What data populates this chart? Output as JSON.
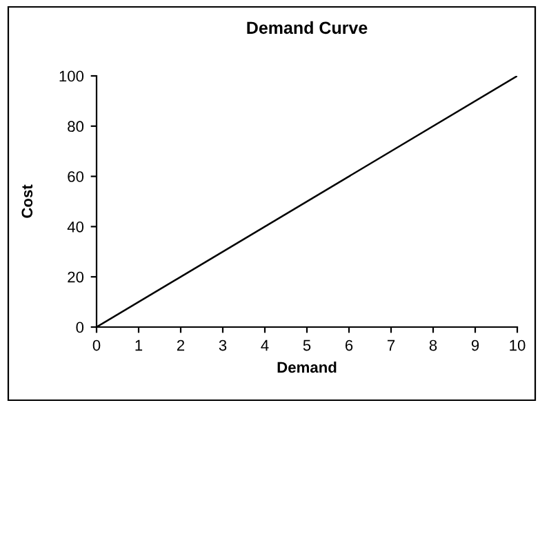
{
  "chart_data": {
    "type": "line",
    "title": "Demand Curve",
    "xlabel": "Demand",
    "ylabel": "Cost",
    "x": [
      0,
      10
    ],
    "series": [
      {
        "color": "#000000",
        "values": [
          0,
          100
        ]
      }
    ],
    "xlim": [
      0,
      10
    ],
    "xticks": [
      0,
      1,
      2,
      3,
      4,
      5,
      6,
      7,
      8,
      9,
      10
    ],
    "ylim": [
      0,
      100
    ],
    "yticks": [
      0,
      20,
      40,
      60,
      80,
      100
    ],
    "grid": false,
    "legend": false,
    "marker": "none",
    "line_style": "solid"
  }
}
